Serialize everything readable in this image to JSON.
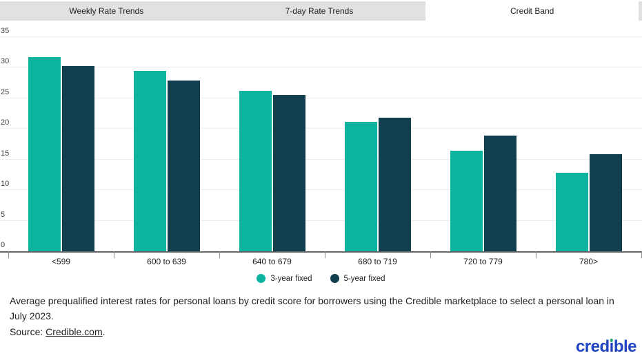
{
  "tabs": [
    {
      "label": "Weekly Rate Trends",
      "active": false
    },
    {
      "label": "7-day Rate Trends",
      "active": false
    },
    {
      "label": "Credit Band",
      "active": true
    }
  ],
  "chart_data": {
    "type": "bar",
    "categories": [
      "<599",
      "600 to 639",
      "640 to 679",
      "680 to 719",
      "720 to 779",
      "780>"
    ],
    "series": [
      {
        "name": "3-year fixed",
        "color": "#0cb4a0",
        "values": [
          31.7,
          29.5,
          26.2,
          21.2,
          16.4,
          12.8
        ]
      },
      {
        "name": "5-year fixed",
        "color": "#123f4e",
        "values": [
          30.3,
          27.9,
          25.6,
          21.8,
          18.9,
          15.9
        ]
      }
    ],
    "title": "",
    "xlabel": "",
    "ylabel": "",
    "ylim": [
      0,
      35
    ],
    "tick_step": 5,
    "grid": true,
    "legend_position": "bottom"
  },
  "caption": {
    "text": "Average prequalified interest rates for personal loans by credit score for borrowers using the Credible marketplace to select a personal loan in July 2023.",
    "source_label": "Source: ",
    "source_link": "Credible.com",
    "source_suffix": "."
  },
  "logo": {
    "text": "credible",
    "color": "#1e44c1",
    "dot_color": "#21ab69"
  }
}
